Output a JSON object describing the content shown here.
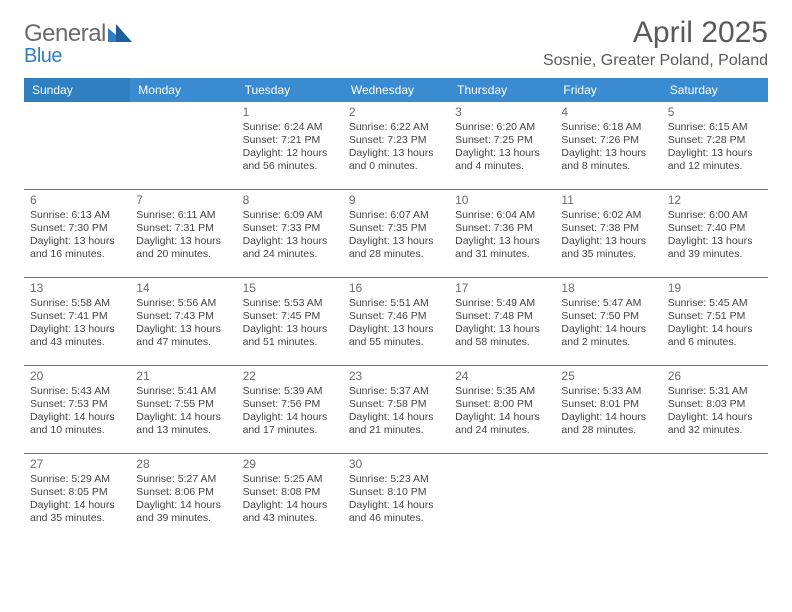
{
  "brand": {
    "general": "General",
    "blue": "Blue"
  },
  "colors": {
    "header_bg": "#3a8bd0",
    "sunday_bg": "#2f7fc1",
    "rule": "#2f7fc1",
    "text": "#444444",
    "muted": "#6b6b6b"
  },
  "title": "April 2025",
  "subtitle": "Sosnie, Greater Poland, Poland",
  "day_headers": [
    "Sunday",
    "Monday",
    "Tuesday",
    "Wednesday",
    "Thursday",
    "Friday",
    "Saturday"
  ],
  "weeks": [
    [
      null,
      null,
      {
        "n": "1",
        "sr": "6:24 AM",
        "ss": "7:21 PM",
        "dl": "12 hours and 56 minutes."
      },
      {
        "n": "2",
        "sr": "6:22 AM",
        "ss": "7:23 PM",
        "dl": "13 hours and 0 minutes."
      },
      {
        "n": "3",
        "sr": "6:20 AM",
        "ss": "7:25 PM",
        "dl": "13 hours and 4 minutes."
      },
      {
        "n": "4",
        "sr": "6:18 AM",
        "ss": "7:26 PM",
        "dl": "13 hours and 8 minutes."
      },
      {
        "n": "5",
        "sr": "6:15 AM",
        "ss": "7:28 PM",
        "dl": "13 hours and 12 minutes."
      }
    ],
    [
      {
        "n": "6",
        "sr": "6:13 AM",
        "ss": "7:30 PM",
        "dl": "13 hours and 16 minutes."
      },
      {
        "n": "7",
        "sr": "6:11 AM",
        "ss": "7:31 PM",
        "dl": "13 hours and 20 minutes."
      },
      {
        "n": "8",
        "sr": "6:09 AM",
        "ss": "7:33 PM",
        "dl": "13 hours and 24 minutes."
      },
      {
        "n": "9",
        "sr": "6:07 AM",
        "ss": "7:35 PM",
        "dl": "13 hours and 28 minutes."
      },
      {
        "n": "10",
        "sr": "6:04 AM",
        "ss": "7:36 PM",
        "dl": "13 hours and 31 minutes."
      },
      {
        "n": "11",
        "sr": "6:02 AM",
        "ss": "7:38 PM",
        "dl": "13 hours and 35 minutes."
      },
      {
        "n": "12",
        "sr": "6:00 AM",
        "ss": "7:40 PM",
        "dl": "13 hours and 39 minutes."
      }
    ],
    [
      {
        "n": "13",
        "sr": "5:58 AM",
        "ss": "7:41 PM",
        "dl": "13 hours and 43 minutes."
      },
      {
        "n": "14",
        "sr": "5:56 AM",
        "ss": "7:43 PM",
        "dl": "13 hours and 47 minutes."
      },
      {
        "n": "15",
        "sr": "5:53 AM",
        "ss": "7:45 PM",
        "dl": "13 hours and 51 minutes."
      },
      {
        "n": "16",
        "sr": "5:51 AM",
        "ss": "7:46 PM",
        "dl": "13 hours and 55 minutes."
      },
      {
        "n": "17",
        "sr": "5:49 AM",
        "ss": "7:48 PM",
        "dl": "13 hours and 58 minutes."
      },
      {
        "n": "18",
        "sr": "5:47 AM",
        "ss": "7:50 PM",
        "dl": "14 hours and 2 minutes."
      },
      {
        "n": "19",
        "sr": "5:45 AM",
        "ss": "7:51 PM",
        "dl": "14 hours and 6 minutes."
      }
    ],
    [
      {
        "n": "20",
        "sr": "5:43 AM",
        "ss": "7:53 PM",
        "dl": "14 hours and 10 minutes."
      },
      {
        "n": "21",
        "sr": "5:41 AM",
        "ss": "7:55 PM",
        "dl": "14 hours and 13 minutes."
      },
      {
        "n": "22",
        "sr": "5:39 AM",
        "ss": "7:56 PM",
        "dl": "14 hours and 17 minutes."
      },
      {
        "n": "23",
        "sr": "5:37 AM",
        "ss": "7:58 PM",
        "dl": "14 hours and 21 minutes."
      },
      {
        "n": "24",
        "sr": "5:35 AM",
        "ss": "8:00 PM",
        "dl": "14 hours and 24 minutes."
      },
      {
        "n": "25",
        "sr": "5:33 AM",
        "ss": "8:01 PM",
        "dl": "14 hours and 28 minutes."
      },
      {
        "n": "26",
        "sr": "5:31 AM",
        "ss": "8:03 PM",
        "dl": "14 hours and 32 minutes."
      }
    ],
    [
      {
        "n": "27",
        "sr": "5:29 AM",
        "ss": "8:05 PM",
        "dl": "14 hours and 35 minutes."
      },
      {
        "n": "28",
        "sr": "5:27 AM",
        "ss": "8:06 PM",
        "dl": "14 hours and 39 minutes."
      },
      {
        "n": "29",
        "sr": "5:25 AM",
        "ss": "8:08 PM",
        "dl": "14 hours and 43 minutes."
      },
      {
        "n": "30",
        "sr": "5:23 AM",
        "ss": "8:10 PM",
        "dl": "14 hours and 46 minutes."
      },
      null,
      null,
      null
    ]
  ],
  "labels": {
    "sunrise": "Sunrise:",
    "sunset": "Sunset:",
    "daylight": "Daylight:"
  }
}
